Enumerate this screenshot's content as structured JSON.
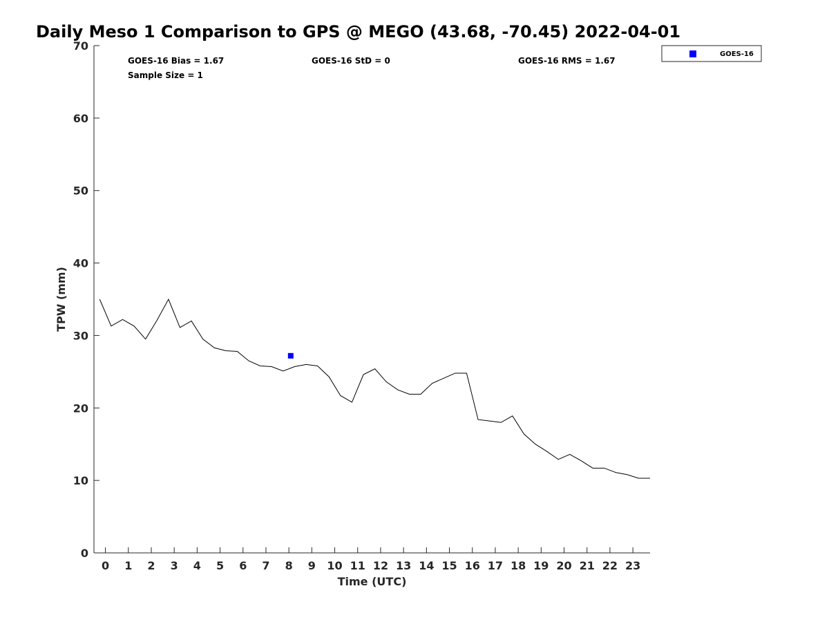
{
  "chart_data": {
    "type": "line",
    "title": "Daily Meso 1 Comparison to GPS @ MEGO (43.68, -70.45) 2022-04-01",
    "xlabel": "Time (UTC)",
    "ylabel": "TPW (mm)",
    "xlim": [
      -0.5,
      23.75
    ],
    "ylim": [
      0,
      70
    ],
    "x_ticks": [
      "0",
      "1",
      "2",
      "3",
      "4",
      "5",
      "6",
      "7",
      "8",
      "9",
      "10",
      "11",
      "12",
      "13",
      "14",
      "15",
      "16",
      "17",
      "18",
      "19",
      "20",
      "21",
      "22",
      "23"
    ],
    "y_ticks": [
      "0",
      "10",
      "20",
      "30",
      "40",
      "50",
      "60",
      "70"
    ],
    "grid": false,
    "legend_position": "top-right",
    "colors": {
      "gps_line": "#000000",
      "goes16": "#0000ff"
    },
    "stats": {
      "bias": "GOES-16 Bias = 1.67",
      "std": "GOES-16 StD = 0",
      "rms": "GOES-16 RMS = 1.67",
      "sample_size": "Sample Size = 1"
    },
    "series": [
      {
        "type": "line",
        "x": [
          -0.25,
          0.25,
          0.75,
          1.25,
          1.75,
          2.25,
          2.75,
          3.25,
          3.75,
          4.25,
          4.75,
          5.25,
          5.75,
          6.25,
          6.75,
          7.25,
          7.75,
          8.25,
          8.75,
          9.25,
          9.75,
          10.25,
          10.75,
          11.25,
          11.75,
          12.25,
          12.75,
          13.25,
          13.75,
          14.25,
          14.75,
          15.25,
          15.75,
          16.25,
          16.75,
          17.25,
          17.75,
          18.25,
          18.75,
          19.25,
          19.75,
          20.25,
          20.75,
          21.25,
          21.75,
          22.25,
          22.75,
          23.25,
          23.75
        ],
        "y": [
          35.0,
          31.3,
          32.2,
          31.3,
          29.5,
          32.1,
          35.0,
          31.1,
          32.0,
          29.5,
          28.3,
          27.9,
          27.8,
          26.5,
          25.8,
          25.7,
          25.1,
          25.7,
          26.0,
          25.8,
          24.3,
          21.7,
          20.8,
          24.6,
          25.4,
          23.6,
          22.5,
          21.9,
          21.9,
          23.4,
          24.1,
          24.8,
          24.8,
          18.4,
          18.2,
          18.0,
          18.9,
          16.4,
          15.0,
          14.0,
          12.9,
          13.6,
          12.7,
          11.7,
          11.7,
          11.1,
          10.8,
          10.3,
          10.3
        ]
      },
      {
        "name": "GOES-16",
        "type": "scatter",
        "x": [
          8.08
        ],
        "y": [
          27.2
        ]
      }
    ]
  }
}
